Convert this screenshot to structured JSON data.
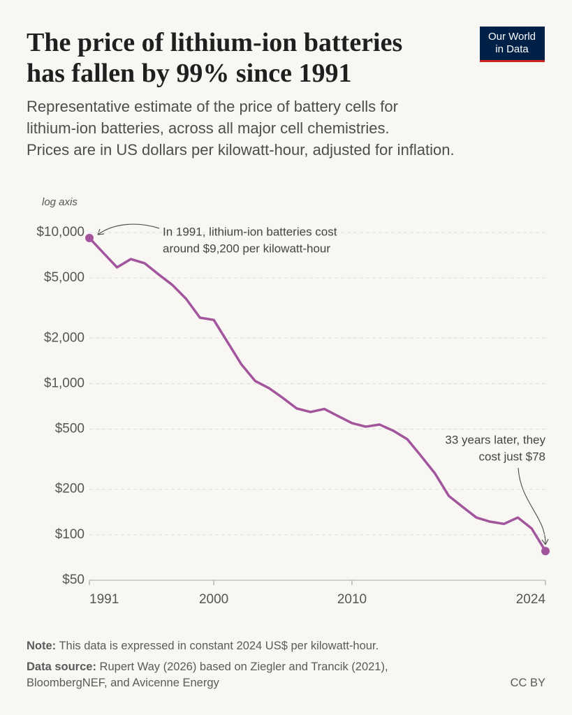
{
  "chart_data": {
    "type": "line",
    "title": [
      "The price of lithium-ion batteries",
      "has fallen by 99% since 1991"
    ],
    "subtitle": [
      "Representative estimate of the price of battery cells for",
      "lithium-ion batteries, across all major cell chemistries.",
      "Prices are in US dollars per kilowatt-hour, adjusted for inflation."
    ],
    "logo": [
      "Our World",
      "in Data"
    ],
    "y_axis_note": "log axis",
    "x": [
      1991,
      1992,
      1993,
      1994,
      1995,
      1996,
      1997,
      1998,
      1999,
      2000,
      2001,
      2002,
      2003,
      2004,
      2005,
      2006,
      2007,
      2008,
      2009,
      2010,
      2011,
      2012,
      2013,
      2014,
      2015,
      2016,
      2017,
      2018,
      2019,
      2020,
      2021,
      2022,
      2023,
      2024
    ],
    "series": [
      {
        "name": "Lithium-ion battery price",
        "color": "#a2559c",
        "values": [
          9200,
          7350,
          5880,
          6670,
          6260,
          5290,
          4500,
          3640,
          2730,
          2640,
          1880,
          1340,
          1040,
          933,
          804,
          685,
          649,
          680,
          610,
          548,
          519,
          536,
          487,
          429,
          332,
          255,
          181,
          153,
          130,
          122,
          118,
          130,
          110,
          78
        ]
      }
    ],
    "log_scale": true,
    "grid": true,
    "xlim": [
      1991,
      2024
    ],
    "xticks": [
      1991,
      2000,
      2010,
      2024
    ],
    "ylim": [
      50,
      10000
    ],
    "yticks": [
      {
        "value": 50,
        "label": "$50"
      },
      {
        "value": 100,
        "label": "$100"
      },
      {
        "value": 200,
        "label": "$200"
      },
      {
        "value": 500,
        "label": "$500"
      },
      {
        "value": 1000,
        "label": "$1,000"
      },
      {
        "value": 2000,
        "label": "$2,000"
      },
      {
        "value": 5000,
        "label": "$5,000"
      },
      {
        "value": 10000,
        "label": "$10,000"
      }
    ],
    "annotations": [
      {
        "lines": [
          "In 1991, lithium-ion batteries cost",
          "around $9,200 per kilowatt-hour"
        ]
      },
      {
        "lines": [
          "33 years later, they",
          "cost just $78"
        ]
      }
    ],
    "note_label": "Note:",
    "note": "This data is expressed in constant 2024 US$ per kilowatt-hour.",
    "source_label": "Data source:",
    "source": [
      "Rupert Way (2026) based on Ziegler and Trancik (2021),",
      "BloombergNEF, and Avicenne Energy"
    ],
    "license": "CC BY"
  }
}
